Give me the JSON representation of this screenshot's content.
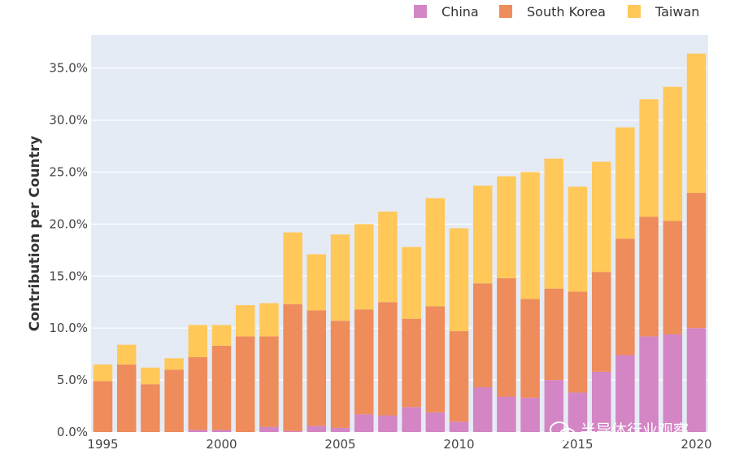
{
  "chart_data": {
    "type": "bar",
    "stacked": true,
    "ylabel": "Contribution per Country",
    "xlabel": "",
    "ylim": [
      0,
      37
    ],
    "y_ticks": [
      0,
      5,
      10,
      15,
      20,
      25,
      30,
      35
    ],
    "y_tick_labels": [
      "0.0%",
      "5.0%",
      "10.0%",
      "15.0%",
      "20.0%",
      "25.0%",
      "30.0%",
      "35.0%"
    ],
    "x_ticks": [
      1995,
      2000,
      2005,
      2010,
      2015,
      2020
    ],
    "x_tick_labels": [
      "1995",
      "2000",
      "2005",
      "2010",
      "2015",
      "2020"
    ],
    "categories": [
      1995,
      1996,
      1997,
      1998,
      1999,
      2000,
      2001,
      2002,
      2003,
      2004,
      2005,
      2006,
      2007,
      2008,
      2009,
      2010,
      2011,
      2012,
      2013,
      2014,
      2015,
      2016,
      2017,
      2018,
      2019,
      2020
    ],
    "grid": true,
    "legend_position": "top-right",
    "series": [
      {
        "name": "China",
        "color": "#d485c4",
        "values": [
          0,
          0,
          0,
          0,
          0.2,
          0.2,
          0,
          0.5,
          0.1,
          0.6,
          0.4,
          1.7,
          1.6,
          2.4,
          1.9,
          1.0,
          4.3,
          3.4,
          3.3,
          5.0,
          3.8,
          5.8,
          7.4,
          9.2,
          9.4,
          10.0
        ]
      },
      {
        "name": "South Korea",
        "color": "#ee8c5b",
        "values": [
          4.9,
          6.5,
          4.6,
          6.0,
          7.0,
          8.1,
          9.2,
          8.7,
          12.2,
          11.1,
          10.3,
          10.1,
          10.9,
          8.5,
          10.2,
          8.7,
          10.0,
          11.4,
          9.5,
          8.8,
          9.7,
          9.6,
          11.2,
          11.5,
          10.9,
          13.0
        ]
      },
      {
        "name": "Taiwan",
        "color": "#ffc859",
        "values": [
          1.6,
          1.9,
          1.6,
          1.1,
          3.1,
          2.0,
          3.0,
          3.2,
          6.9,
          5.4,
          8.3,
          8.2,
          8.7,
          6.9,
          10.4,
          9.9,
          9.4,
          9.8,
          12.2,
          12.5,
          10.1,
          10.6,
          10.7,
          11.3,
          12.9,
          13.4
        ]
      }
    ]
  },
  "watermark": {
    "text": "半导体行业观察",
    "icon": "wechat-icon"
  }
}
